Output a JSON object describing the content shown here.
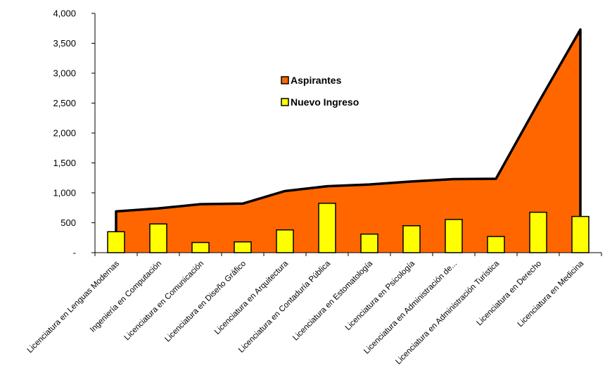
{
  "chart_data": {
    "type": "area",
    "categories": [
      "Licenciatura en Lenguas Modernas",
      "Ingeniería en Computación",
      "Licenciatura en Comunicación",
      "Licenciatura en Diseño Gráfico",
      "Licenciatura en Arquitectura",
      "Licenciatura en Contaduría Pública",
      "Licenciatura en Estomatología",
      "Licenciatura en Psicología",
      "Licenciatura en Administración de...",
      "Licenciatura en Administración Turística",
      "Licenciatura en Derecho",
      "Licenciatura en Medicina"
    ],
    "series": [
      {
        "name": "Aspirantes",
        "type": "area",
        "color": "#ff6600",
        "values": [
          690,
          740,
          810,
          820,
          1030,
          1110,
          1140,
          1190,
          1230,
          1235,
          2500,
          3730
        ]
      },
      {
        "name": "Nuevo Ingreso",
        "type": "bar",
        "color": "#ffff00",
        "values": [
          350,
          480,
          170,
          180,
          380,
          825,
          310,
          450,
          555,
          270,
          675,
          605
        ]
      }
    ],
    "yticks": [
      "-",
      "500",
      "1,000",
      "1,500",
      "2,000",
      "2,500",
      "3,000",
      "3,500",
      "4,000"
    ],
    "ylim": [
      0,
      4000
    ],
    "legend_position": "center",
    "grid": false
  }
}
